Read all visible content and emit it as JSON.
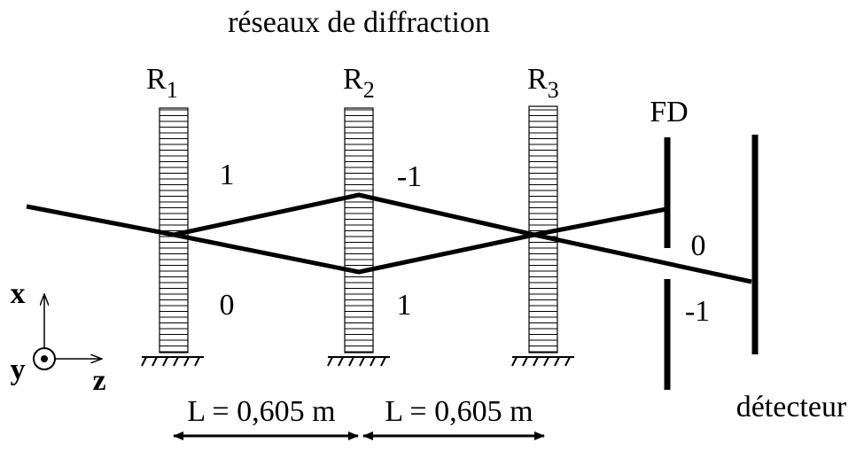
{
  "title": "réseaux de diffraction",
  "gratings": [
    {
      "name": "R",
      "index": "1"
    },
    {
      "name": "R",
      "index": "2"
    },
    {
      "name": "R",
      "index": "3"
    }
  ],
  "orders": [
    "1",
    "0",
    "-1",
    "1",
    "0",
    "-1"
  ],
  "slit": "FD",
  "detector": "détecteur",
  "distances": [
    "L = 0,605 m",
    "L = 0,605 m"
  ],
  "axes": [
    "x",
    "y",
    "z"
  ]
}
